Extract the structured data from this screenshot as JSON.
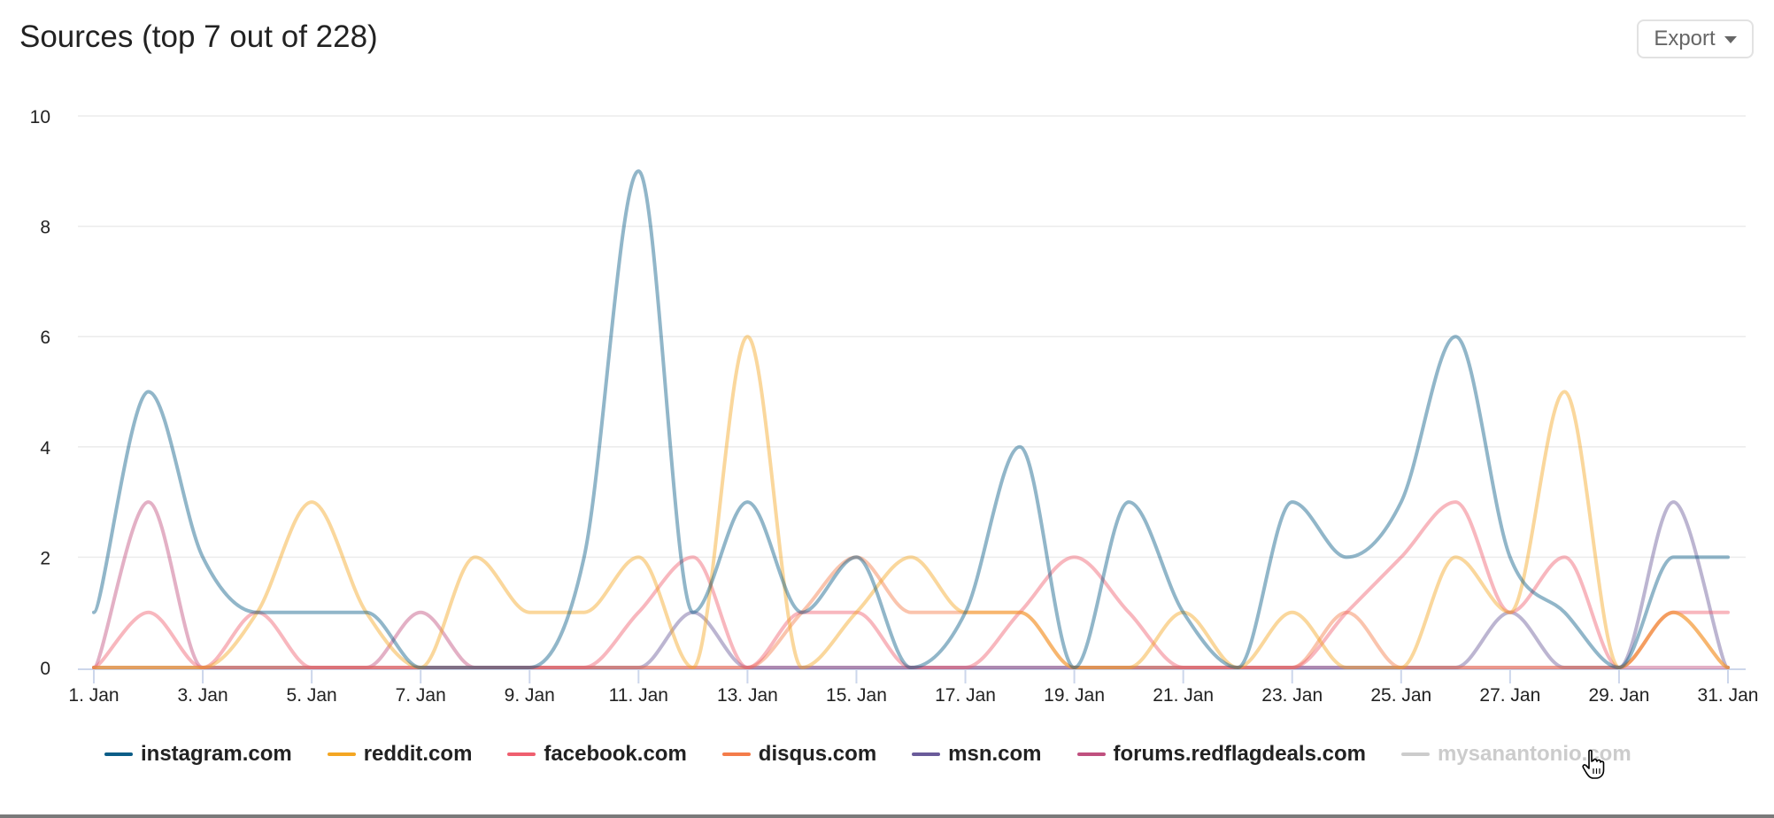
{
  "header": {
    "title": "Sources (top 7 out of 228)",
    "export_label": "Export",
    "export_icon": "caret-down-icon"
  },
  "chart_data": {
    "type": "line",
    "title": "Sources (top 7 out of 228)",
    "xlabel": "",
    "ylabel": "",
    "ylim": [
      0,
      10
    ],
    "yticks": [
      0,
      2,
      4,
      6,
      8,
      10
    ],
    "grid": true,
    "legend_position": "bottom",
    "smoothing": "spline",
    "x": [
      "1. Jan",
      "2. Jan",
      "3. Jan",
      "4. Jan",
      "5. Jan",
      "6. Jan",
      "7. Jan",
      "8. Jan",
      "9. Jan",
      "10. Jan",
      "11. Jan",
      "12. Jan",
      "13. Jan",
      "14. Jan",
      "15. Jan",
      "16. Jan",
      "17. Jan",
      "18. Jan",
      "19. Jan",
      "20. Jan",
      "21. Jan",
      "22. Jan",
      "23. Jan",
      "24. Jan",
      "25. Jan",
      "26. Jan",
      "27. Jan",
      "28. Jan",
      "29. Jan",
      "30. Jan",
      "31. Jan"
    ],
    "xtick_labels": [
      "1. Jan",
      "3. Jan",
      "5. Jan",
      "7. Jan",
      "9. Jan",
      "11. Jan",
      "13. Jan",
      "15. Jan",
      "17. Jan",
      "19. Jan",
      "21. Jan",
      "23. Jan",
      "25. Jan",
      "27. Jan",
      "29. Jan",
      "31. Jan"
    ],
    "series": [
      {
        "name": "instagram.com",
        "color": "#0b5d87",
        "visible": true,
        "values": [
          1,
          5,
          2,
          1,
          1,
          1,
          0,
          0,
          0,
          2,
          9,
          1,
          3,
          1,
          2,
          0,
          1,
          4,
          0,
          3,
          1,
          0,
          3,
          2,
          3,
          6,
          2,
          1,
          0,
          2,
          2
        ]
      },
      {
        "name": "reddit.com",
        "color": "#f4a623",
        "visible": true,
        "values": [
          0,
          0,
          0,
          1,
          3,
          1,
          0,
          2,
          1,
          1,
          2,
          0,
          6,
          0,
          1,
          2,
          1,
          1,
          0,
          0,
          1,
          0,
          1,
          0,
          0,
          2,
          1,
          5,
          0,
          1,
          0
        ]
      },
      {
        "name": "facebook.com",
        "color": "#ef5f6f",
        "visible": true,
        "values": [
          0,
          1,
          0,
          1,
          0,
          0,
          0,
          0,
          0,
          0,
          1,
          2,
          0,
          1,
          1,
          0,
          0,
          1,
          2,
          1,
          0,
          0,
          0,
          1,
          2,
          3,
          1,
          2,
          0,
          1,
          1
        ]
      },
      {
        "name": "disqus.com",
        "color": "#f47c4a",
        "visible": true,
        "values": [
          0,
          0,
          0,
          0,
          0,
          0,
          0,
          0,
          0,
          0,
          0,
          0,
          0,
          1,
          2,
          1,
          1,
          1,
          0,
          0,
          0,
          0,
          0,
          1,
          0,
          0,
          0,
          0,
          0,
          1,
          0
        ]
      },
      {
        "name": "msn.com",
        "color": "#6a5b9a",
        "visible": true,
        "values": [
          0,
          0,
          0,
          0,
          0,
          0,
          0,
          0,
          0,
          0,
          0,
          1,
          0,
          0,
          0,
          0,
          0,
          0,
          0,
          0,
          0,
          0,
          0,
          0,
          0,
          0,
          1,
          0,
          0,
          3,
          0
        ]
      },
      {
        "name": "forums.redflagdeals.com",
        "color": "#c0507f",
        "visible": true,
        "values": [
          0,
          3,
          0,
          0,
          0,
          0,
          1,
          0,
          0,
          0,
          0,
          0,
          0,
          0,
          0,
          0,
          0,
          0,
          0,
          0,
          0,
          0,
          0,
          0,
          0,
          0,
          0,
          0,
          0,
          0,
          0
        ]
      },
      {
        "name": "mysanantonio.com",
        "color": "#cccccc",
        "visible": false,
        "values": []
      }
    ]
  },
  "legend": {
    "items": [
      {
        "label": "instagram.com",
        "color": "#0b5d87"
      },
      {
        "label": "reddit.com",
        "color": "#f4a623"
      },
      {
        "label": "facebook.com",
        "color": "#ef5f6f"
      },
      {
        "label": "disqus.com",
        "color": "#f47c4a"
      },
      {
        "label": "msn.com",
        "color": "#6a5b9a"
      },
      {
        "label": "forums.redflagdeals.com",
        "color": "#c0507f"
      },
      {
        "label": "mysanantonio.com",
        "color": "#cccccc",
        "hidden": true
      }
    ]
  }
}
